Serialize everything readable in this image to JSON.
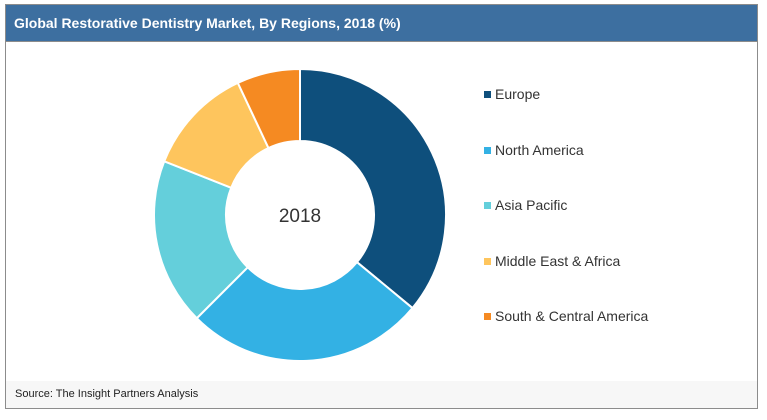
{
  "header": {
    "title": "Global Restorative Dentistry Market, By Regions, 2018 (%)"
  },
  "footer": {
    "source": "Source: The Insight Partners Analysis"
  },
  "chart_data": {
    "type": "pie",
    "center_label": "2018",
    "legend_position": "right",
    "categories": [
      "Europe",
      "North America",
      "Asia Pacific",
      "Middle East & Africa",
      "South & Central America"
    ],
    "values": [
      36.0,
      26.5,
      18.5,
      12.0,
      7.0
    ],
    "colors": [
      "#0e4f7c",
      "#33b1e4",
      "#64cfdb",
      "#fec55d",
      "#f58a22"
    ]
  }
}
